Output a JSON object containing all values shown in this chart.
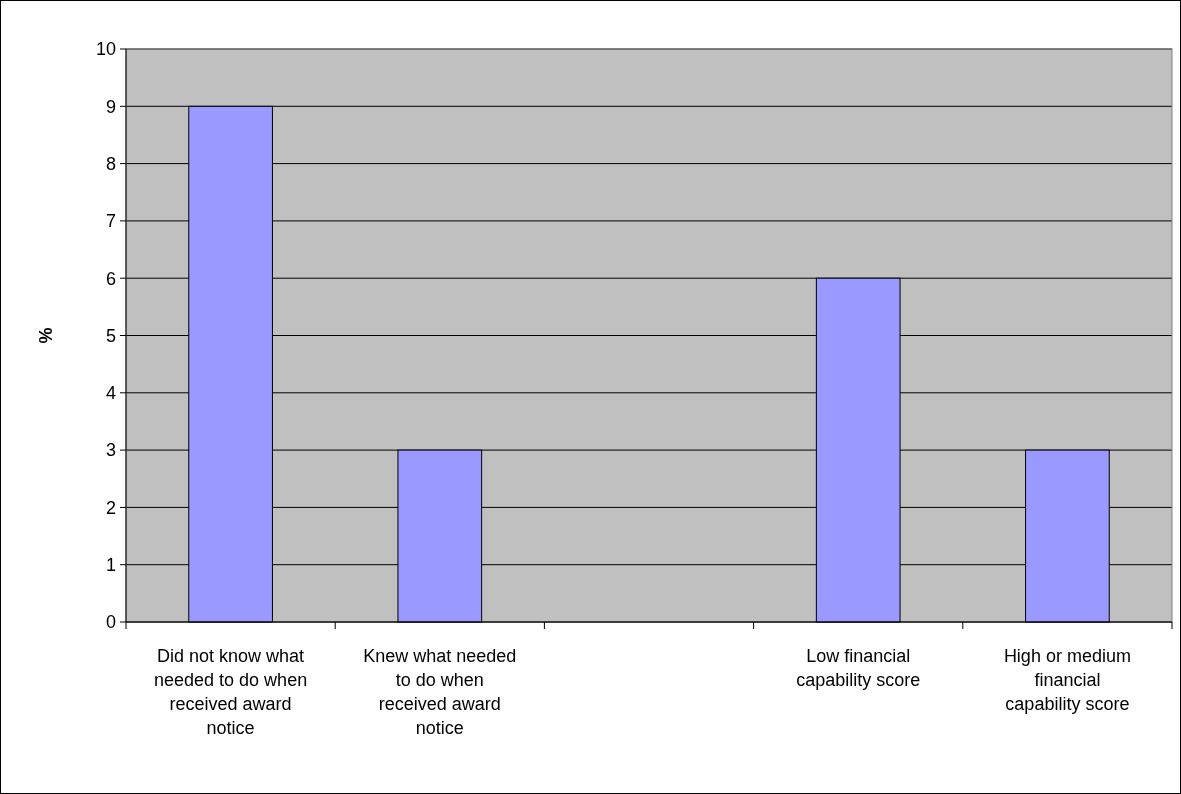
{
  "chart_data": {
    "type": "bar",
    "ylabel": "%",
    "categories": [
      "Did not know what needed to do when received award notice",
      "Knew what needed to do when received award notice",
      null,
      "Low financial capability score",
      "High or medium financial capability score"
    ],
    "values": [
      9,
      3,
      null,
      6,
      3
    ],
    "color": "#9999ff",
    "ylim": [
      0,
      10
    ],
    "yticks": [
      0,
      1,
      2,
      3,
      4,
      5,
      6,
      7,
      8,
      9,
      10
    ],
    "grid": "y"
  }
}
